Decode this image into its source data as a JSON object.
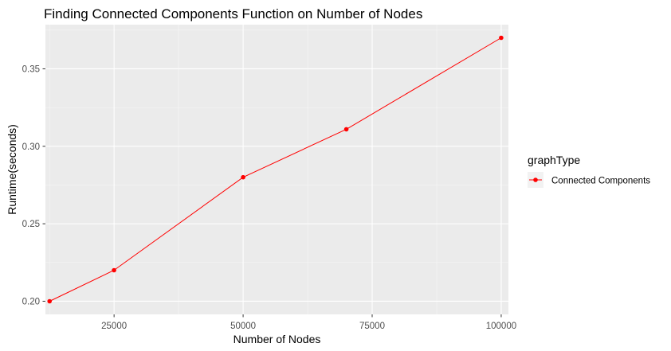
{
  "chart_data": {
    "type": "line",
    "title": "Finding Connected Components Function on Number of Nodes",
    "xlabel": "Number of Nodes",
    "ylabel": "Runtime(seconds)",
    "xlim": [
      11700,
      101400
    ],
    "ylim": [
      0.1915,
      0.3785
    ],
    "x_ticks": [
      25000,
      50000,
      75000,
      100000
    ],
    "x_tick_labels": [
      "25000",
      "50000",
      "75000",
      "100000"
    ],
    "x_minor_ticks": [
      12500,
      37500,
      62500,
      87500
    ],
    "y_ticks": [
      0.2,
      0.25,
      0.3,
      0.35
    ],
    "y_tick_labels": [
      "0.20",
      "0.25",
      "0.30",
      "0.35"
    ],
    "y_minor_ticks": [
      0.225,
      0.275,
      0.325,
      0.375
    ],
    "grid": true,
    "legend_title": "graphType",
    "legend_position": "right",
    "series": [
      {
        "name": "Connected Components",
        "color": "#ff0000",
        "x": [
          12500,
          25000,
          50000,
          70000,
          100000
        ],
        "y": [
          0.2,
          0.22,
          0.28,
          0.311,
          0.37
        ]
      }
    ]
  },
  "colors": {
    "panel_background": "#ebebeb",
    "grid_major": "#ffffff",
    "grid_minor": "#f6f6f6",
    "tick_text": "#4d4d4d",
    "tick_mark": "#333333"
  }
}
